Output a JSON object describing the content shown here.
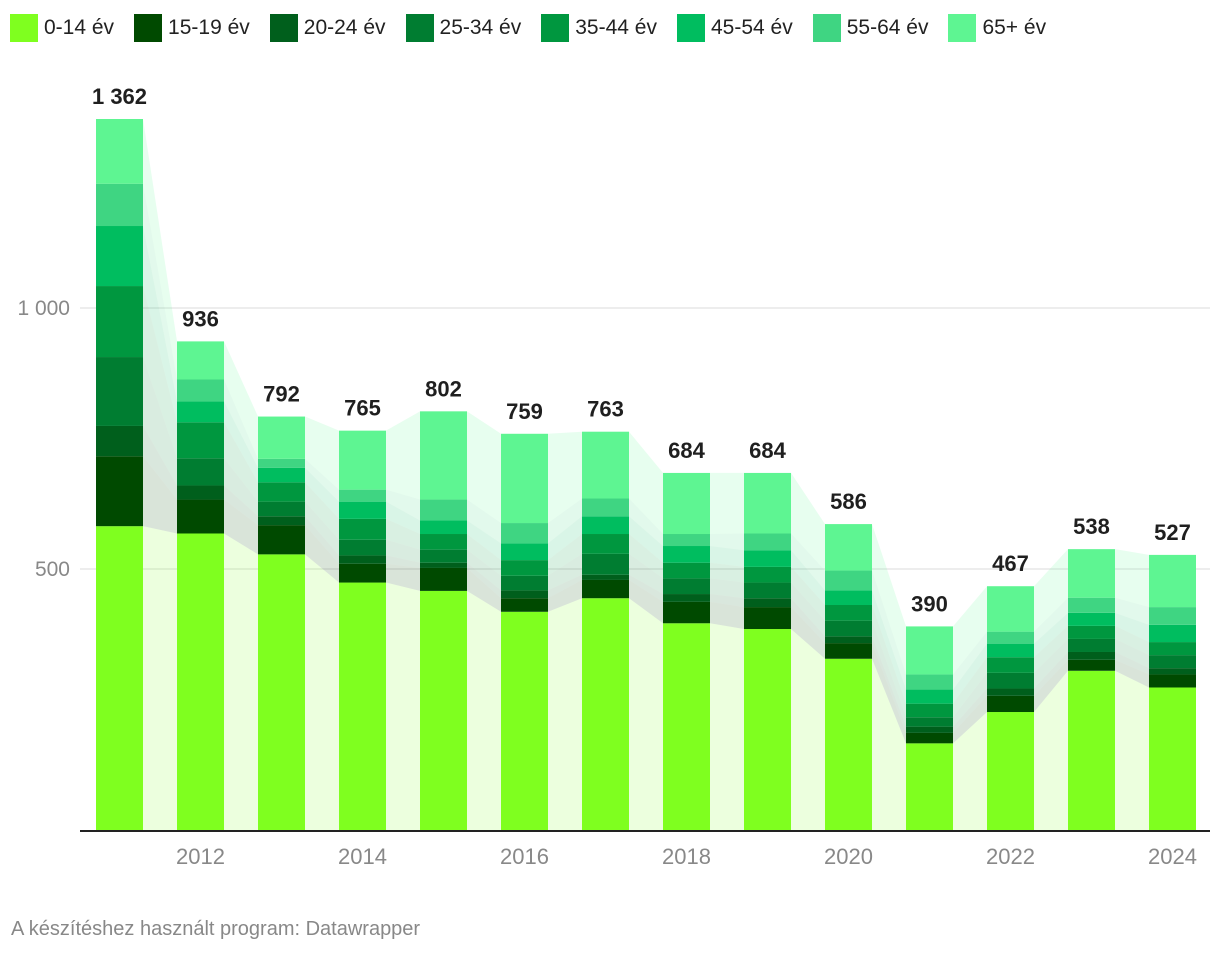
{
  "chart_data": {
    "type": "bar",
    "stacked": true,
    "categories": [
      "2011",
      "2012",
      "2013",
      "2014",
      "2015",
      "2016",
      "2017",
      "2018",
      "2019",
      "2020",
      "2021",
      "2022",
      "2023",
      "2024"
    ],
    "x_tick_labels": [
      "",
      "2012",
      "",
      "2014",
      "",
      "2016",
      "",
      "2018",
      "",
      "2020",
      "",
      "2022",
      "",
      "2024"
    ],
    "totals": [
      1362,
      936,
      792,
      765,
      802,
      759,
      763,
      684,
      684,
      586,
      390,
      467,
      538,
      527
    ],
    "total_labels": [
      "1 362",
      "936",
      "792",
      "765",
      "802",
      "759",
      "763",
      "684",
      "684",
      "586",
      "390",
      "467",
      "538",
      "527"
    ],
    "series": [
      {
        "name": "0-14 év",
        "color": "#7fff1f",
        "values": [
          582,
          568,
          528,
          474,
          458,
          418,
          444,
          396,
          385,
          328,
          166,
          226,
          305,
          273
        ]
      },
      {
        "name": "15-19 év",
        "color": "#004a00",
        "values": [
          134,
          65,
          56,
          36,
          44,
          26,
          35,
          41,
          42,
          30,
          20,
          31,
          21,
          25
        ]
      },
      {
        "name": "20-24 év",
        "color": "#005f1c",
        "values": [
          58,
          27,
          17,
          16,
          10,
          15,
          10,
          15,
          17,
          13,
          12,
          14,
          15,
          12
        ]
      },
      {
        "name": "25-34 év",
        "color": "#007d31",
        "values": [
          132,
          52,
          28,
          30,
          25,
          28,
          40,
          30,
          30,
          30,
          18,
          30,
          25,
          25
        ]
      },
      {
        "name": "35-44 év",
        "color": "#00973f",
        "values": [
          136,
          69,
          37,
          40,
          30,
          30,
          38,
          30,
          30,
          30,
          26,
          30,
          25,
          25
        ]
      },
      {
        "name": "45-54 év",
        "color": "#00bd5f",
        "values": [
          115,
          40,
          28,
          33,
          26,
          32,
          34,
          32,
          32,
          28,
          27,
          26,
          25,
          33
        ]
      },
      {
        "name": "55-64 év",
        "color": "#3fd582",
        "values": [
          81,
          42,
          17,
          23,
          40,
          39,
          34,
          23,
          32,
          38,
          29,
          23,
          29,
          34
        ]
      },
      {
        "name": "65+ év",
        "color": "#5ef592",
        "values": [
          124,
          73,
          81,
          113,
          169,
          171,
          128,
          117,
          116,
          89,
          92,
          87,
          93,
          100
        ]
      }
    ],
    "y_axis": {
      "ylim": [
        0,
        1362
      ],
      "ticks": [
        500,
        1000
      ],
      "tick_labels": [
        "500",
        "1 000"
      ],
      "grid": true
    },
    "title": "",
    "xlabel": "",
    "ylabel": "",
    "legend_position": "top-left"
  },
  "footer": {
    "text": "A készítéshez használt program: Datawrapper"
  }
}
